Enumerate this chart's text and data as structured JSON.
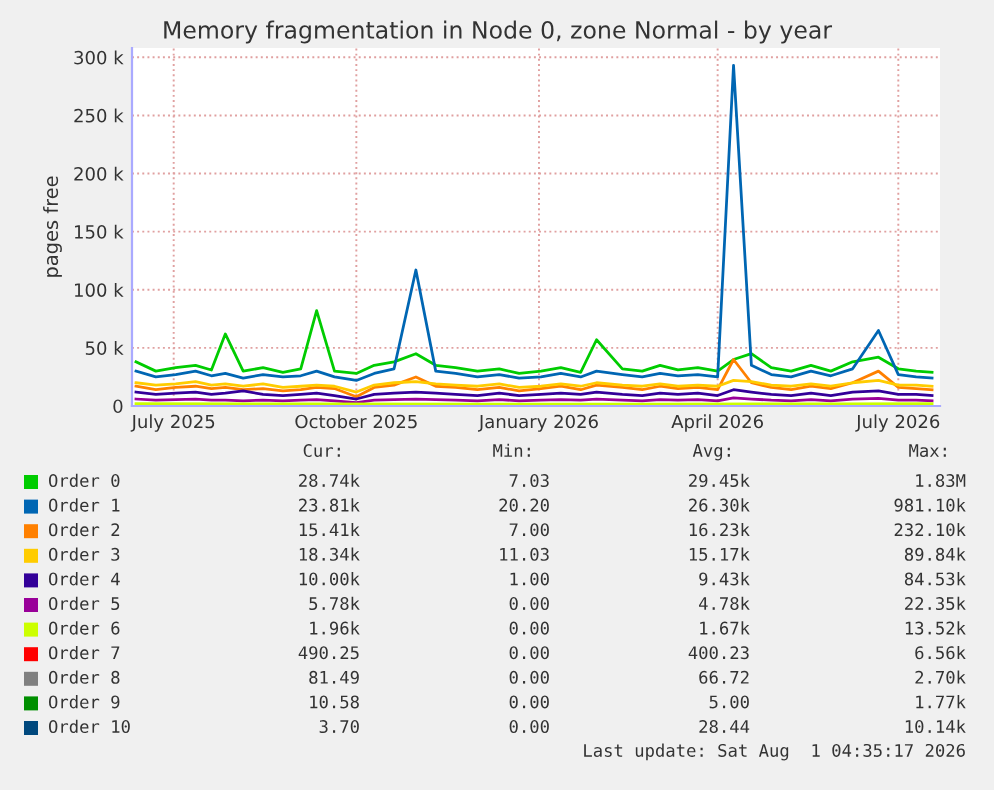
{
  "chart_data": {
    "type": "line",
    "title": "Memory fragmentation in Node 0, zone Normal - by year",
    "ylabel": "pages free",
    "x": [
      "2025-06-12",
      "2025-06-22",
      "2025-07-02",
      "2025-07-12",
      "2025-07-20",
      "2025-07-27",
      "2025-08-05",
      "2025-08-15",
      "2025-08-25",
      "2025-09-03",
      "2025-09-11",
      "2025-09-20",
      "2025-10-01",
      "2025-10-10",
      "2025-10-20",
      "2025-10-31",
      "2025-11-10",
      "2025-11-20",
      "2025-12-01",
      "2025-12-12",
      "2025-12-22",
      "2026-01-02",
      "2026-01-12",
      "2026-01-22",
      "2026-01-30",
      "2026-02-12",
      "2026-02-22",
      "2026-03-03",
      "2026-03-12",
      "2026-03-22",
      "2026-04-01",
      "2026-04-09",
      "2026-04-18",
      "2026-04-28",
      "2026-05-08",
      "2026-05-18",
      "2026-05-28",
      "2026-06-08",
      "2026-06-21",
      "2026-07-01",
      "2026-07-10",
      "2026-07-18"
    ],
    "series": [
      {
        "name": "Order 0",
        "color": "#00cc00",
        "values": [
          38000,
          30000,
          33000,
          35000,
          31000,
          62000,
          30000,
          33000,
          29000,
          32000,
          82000,
          30000,
          28000,
          35000,
          38000,
          45000,
          35000,
          33000,
          30000,
          32000,
          28000,
          30000,
          33000,
          29000,
          57000,
          32000,
          30000,
          35000,
          31000,
          33000,
          30000,
          40000,
          45000,
          33000,
          30000,
          35000,
          30000,
          38000,
          42000,
          32000,
          30000,
          29000
        ]
      },
      {
        "name": "Order 1",
        "color": "#0066b3",
        "values": [
          30000,
          25000,
          27000,
          30000,
          26000,
          28000,
          24000,
          27000,
          25000,
          26000,
          30000,
          25000,
          22000,
          28000,
          32000,
          117000,
          30000,
          28000,
          25000,
          27000,
          24000,
          25000,
          28000,
          25000,
          30000,
          27000,
          25000,
          28000,
          26000,
          27000,
          25000,
          293000,
          35000,
          27000,
          25000,
          30000,
          26000,
          32000,
          65000,
          27000,
          25000,
          24000
        ]
      },
      {
        "name": "Order 2",
        "color": "#ff8000",
        "values": [
          17000,
          14000,
          16000,
          17000,
          15000,
          16000,
          14000,
          15000,
          13000,
          14000,
          16000,
          15000,
          8000,
          16000,
          18000,
          25000,
          17000,
          16000,
          14000,
          16000,
          13000,
          15000,
          17000,
          14000,
          18000,
          16000,
          14000,
          17000,
          15000,
          16000,
          14000,
          40000,
          20000,
          16000,
          14000,
          17000,
          15000,
          20000,
          30000,
          16000,
          15000,
          14000
        ]
      },
      {
        "name": "Order 3",
        "color": "#ffcc00",
        "values": [
          20000,
          18000,
          19000,
          21000,
          18000,
          19000,
          17000,
          19000,
          16000,
          17000,
          18000,
          17000,
          12000,
          18000,
          20000,
          21000,
          19000,
          18000,
          17000,
          19000,
          16000,
          17000,
          19000,
          17000,
          20000,
          18000,
          17000,
          19000,
          17000,
          18000,
          17000,
          22000,
          21000,
          18000,
          17000,
          19000,
          17000,
          20000,
          22000,
          18000,
          18000,
          17000
        ]
      },
      {
        "name": "Order 4",
        "color": "#330099",
        "values": [
          12000,
          10000,
          11000,
          12000,
          10000,
          11000,
          13000,
          10000,
          9000,
          10000,
          11000,
          9000,
          6000,
          10000,
          11000,
          12000,
          11000,
          10000,
          9000,
          11000,
          9000,
          10000,
          11000,
          10000,
          12000,
          10000,
          9000,
          11000,
          10000,
          11000,
          9000,
          14000,
          12000,
          10000,
          9000,
          11000,
          9000,
          12000,
          13000,
          10000,
          10000,
          9000
        ]
      },
      {
        "name": "Order 5",
        "color": "#990099",
        "values": [
          6000,
          5000,
          5500,
          6000,
          5000,
          5000,
          4500,
          5000,
          4500,
          5000,
          5500,
          4500,
          3000,
          5000,
          5500,
          6000,
          5500,
          5000,
          4500,
          5500,
          4500,
          5000,
          5500,
          5000,
          6000,
          5000,
          4500,
          5500,
          5000,
          5500,
          4500,
          7000,
          6000,
          5000,
          4500,
          5500,
          4500,
          6000,
          6500,
          5000,
          5000,
          4500
        ]
      },
      {
        "name": "Order 6",
        "color": "#ccff00",
        "x": [
          "2025-06-12",
          "2025-09-01",
          "2025-12-01",
          "2026-03-01",
          "2026-06-01",
          "2026-07-18"
        ],
        "values": [
          2000,
          1800,
          1700,
          1600,
          1900,
          2000
        ]
      },
      {
        "name": "Order 7",
        "color": "#ff0000",
        "values": [
          null,
          null,
          null,
          null,
          null,
          null,
          null,
          null,
          null,
          null,
          null,
          null,
          null,
          null,
          null,
          null,
          null,
          null,
          null,
          null,
          null,
          null,
          null,
          null,
          null,
          null,
          null,
          null,
          null,
          null,
          null,
          null,
          null,
          null,
          null,
          null,
          null,
          null,
          null,
          null,
          null,
          null
        ]
      },
      {
        "name": "Order 8",
        "color": "#808080",
        "values": [
          null,
          null,
          null,
          null,
          null,
          null,
          null,
          null,
          null,
          null,
          null,
          null,
          null,
          null,
          null,
          null,
          null,
          null,
          null,
          null,
          null,
          null,
          null,
          null,
          null,
          null,
          null,
          null,
          null,
          null,
          null,
          null,
          null,
          null,
          null,
          null,
          null,
          null,
          null,
          null,
          null,
          null
        ]
      },
      {
        "name": "Order 9",
        "color": "#008f00",
        "values": [
          null,
          null,
          null,
          null,
          null,
          null,
          null,
          null,
          null,
          null,
          null,
          null,
          null,
          null,
          null,
          null,
          null,
          null,
          null,
          null,
          null,
          null,
          null,
          null,
          null,
          null,
          null,
          null,
          null,
          null,
          null,
          null,
          null,
          null,
          null,
          null,
          null,
          null,
          null,
          null,
          null,
          null
        ]
      },
      {
        "name": "Order 10",
        "color": "#00487d",
        "values": [
          null,
          null,
          null,
          null,
          null,
          null,
          null,
          null,
          null,
          null,
          null,
          null,
          null,
          null,
          null,
          null,
          null,
          null,
          null,
          null,
          null,
          null,
          null,
          null,
          null,
          null,
          null,
          null,
          null,
          null,
          null,
          null,
          null,
          null,
          null,
          null,
          null,
          null,
          null,
          null,
          null,
          null
        ]
      }
    ],
    "xlim": [
      "2025-06-10",
      "2026-07-22"
    ],
    "xticks": [
      {
        "value": "2025-07-01",
        "label": "July 2025"
      },
      {
        "value": "2025-10-01",
        "label": "October 2025"
      },
      {
        "value": "2026-01-01",
        "label": "January 2026"
      },
      {
        "value": "2026-04-01",
        "label": "April 2026"
      },
      {
        "value": "2026-07-01",
        "label": "July 2026"
      }
    ],
    "ylim": [
      0,
      308000
    ],
    "yticks": [
      {
        "value": 0,
        "label": "0"
      },
      {
        "value": 50000,
        "label": "50 k"
      },
      {
        "value": 100000,
        "label": "100 k"
      },
      {
        "value": 150000,
        "label": "150 k"
      },
      {
        "value": 200000,
        "label": "200 k"
      },
      {
        "value": 250000,
        "label": "250 k"
      },
      {
        "value": 300000,
        "label": "300 k"
      }
    ],
    "grid": true,
    "legend": "bottom",
    "marker": "none",
    "line_style": "solid",
    "annotations": [
      "Cur:",
      "Min:",
      "Avg:",
      "Max:",
      "28.74k",
      "7.03",
      "29.45k",
      "1.83M",
      "23.81k",
      "20.20",
      "26.30k",
      "981.10k",
      "15.41k",
      "7.00",
      "16.23k",
      "232.10k",
      "18.34k",
      "11.03",
      "15.17k",
      "89.84k",
      "10.00k",
      "1.00",
      "9.43k",
      "84.53k",
      "5.78k",
      "0.00",
      "4.78k",
      "22.35k",
      "1.96k",
      "0.00",
      "1.67k",
      "13.52k",
      "490.25",
      "0.00",
      "400.23",
      "6.56k",
      "81.49",
      "0.00",
      "66.72",
      "2.70k",
      "10.58",
      "0.00",
      "5.00",
      "1.77k",
      "3.70",
      "0.00",
      "28.44",
      "10.14k",
      "Last update: Sat Aug  1 04:35:17 2026"
    ]
  }
}
